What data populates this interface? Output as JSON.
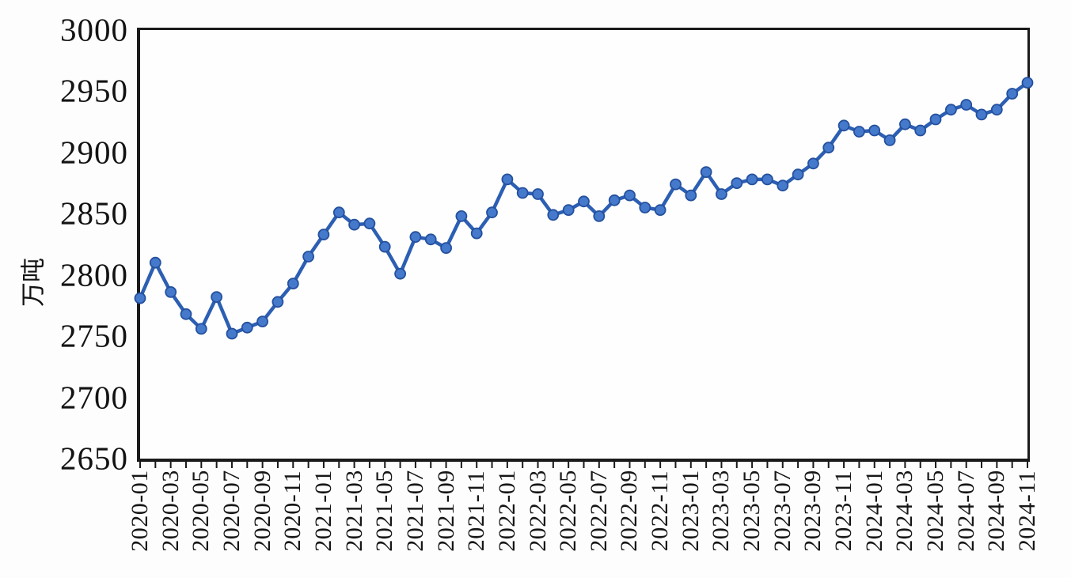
{
  "chart_data": {
    "type": "line",
    "title": "",
    "xlabel": "",
    "ylabel": "万吨",
    "ylim": [
      2650,
      3000
    ],
    "ytick_step": 50,
    "yticks": [
      3000,
      2950,
      2900,
      2850,
      2800,
      2750,
      2700,
      2650
    ],
    "xtick_every": 2,
    "xtick_labels": [
      "2020-01",
      "2020-03",
      "2020-05",
      "2020-07",
      "2020-09",
      "2020-11",
      "2021-01",
      "2021-03",
      "2021-05",
      "2021-07",
      "2021-09",
      "2021-11",
      "2022-01",
      "2022-03",
      "2022-05",
      "2022-07",
      "2022-09",
      "2022-11",
      "2023-01",
      "2023-03",
      "2023-05",
      "2023-07",
      "2023-09",
      "2023-11",
      "2024-01",
      "2024-03",
      "2024-05",
      "2024-07",
      "2024-09",
      "2024-11"
    ],
    "x": [
      "2020-01",
      "2020-02",
      "2020-03",
      "2020-04",
      "2020-05",
      "2020-06",
      "2020-07",
      "2020-08",
      "2020-09",
      "2020-10",
      "2020-11",
      "2020-12",
      "2021-01",
      "2021-02",
      "2021-03",
      "2021-04",
      "2021-05",
      "2021-06",
      "2021-07",
      "2021-08",
      "2021-09",
      "2021-10",
      "2021-11",
      "2021-12",
      "2022-01",
      "2022-02",
      "2022-03",
      "2022-04",
      "2022-05",
      "2022-06",
      "2022-07",
      "2022-08",
      "2022-09",
      "2022-10",
      "2022-11",
      "2022-12",
      "2023-01",
      "2023-02",
      "2023-03",
      "2023-04",
      "2023-05",
      "2023-06",
      "2023-07",
      "2023-08",
      "2023-09",
      "2023-10",
      "2023-11",
      "2023-12",
      "2024-01",
      "2024-02",
      "2024-03",
      "2024-04",
      "2024-05",
      "2024-06",
      "2024-07",
      "2024-08",
      "2024-09",
      "2024-10",
      "2024-11"
    ],
    "values": [
      2781,
      2810,
      2786,
      2768,
      2756,
      2782,
      2752,
      2757,
      2762,
      2778,
      2793,
      2815,
      2833,
      2851,
      2841,
      2842,
      2823,
      2801,
      2831,
      2829,
      2822,
      2848,
      2834,
      2851,
      2878,
      2867,
      2866,
      2849,
      2853,
      2860,
      2848,
      2861,
      2865,
      2855,
      2853,
      2874,
      2865,
      2884,
      2866,
      2875,
      2878,
      2878,
      2873,
      2882,
      2891,
      2904,
      2922,
      2917,
      2918,
      2910,
      2923,
      2918,
      2927,
      2935,
      2939,
      2931,
      2935,
      2948,
      2957
    ],
    "grid": false,
    "legend": "none",
    "line_color": "#2c5fb3",
    "marker_fill": "#4579cb",
    "marker_edge": "#24509e",
    "axis_color": "#1a1a1a"
  }
}
